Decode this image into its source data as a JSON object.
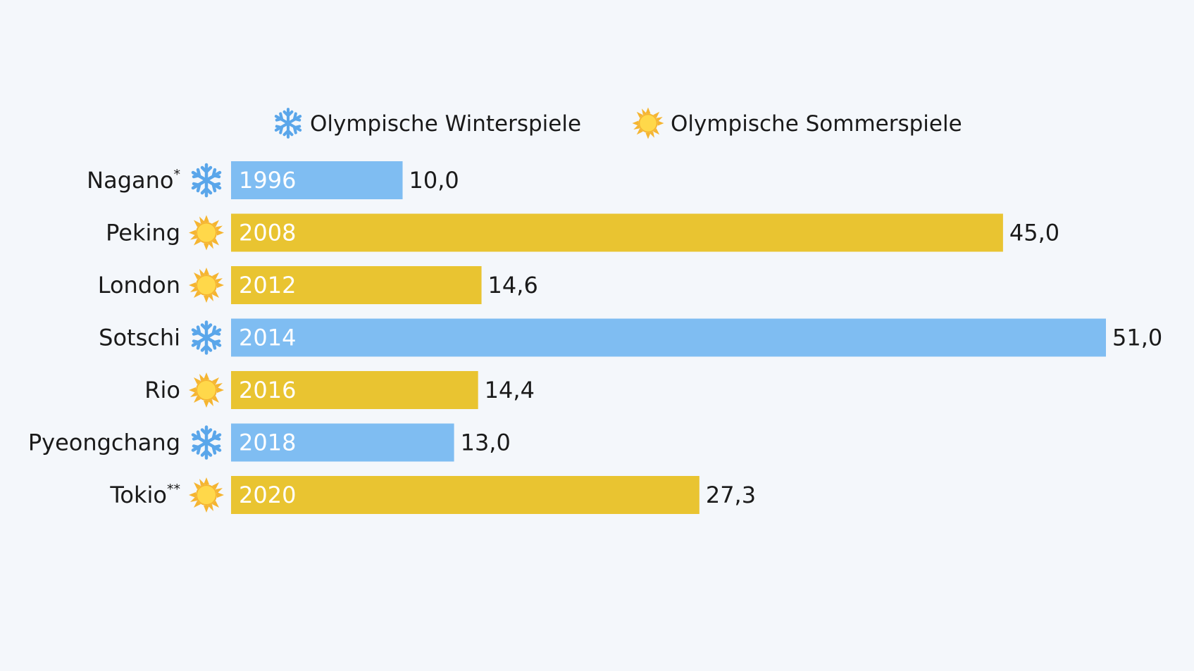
{
  "chart_data": {
    "type": "bar",
    "orientation": "horizontal",
    "categories": [
      "Nagano*",
      "Peking",
      "London",
      "Sotschi",
      "Rio",
      "Pyeongchang",
      "Tokio**"
    ],
    "years": [
      "1996",
      "2008",
      "2012",
      "2014",
      "2016",
      "2018",
      "2020"
    ],
    "values": [
      10.0,
      45.0,
      14.6,
      51.0,
      14.4,
      13.0,
      27.3
    ],
    "value_labels": [
      "10,0",
      "45,0",
      "14,6",
      "51,0",
      "14,4",
      "13,0",
      "27,3"
    ],
    "season": [
      "winter",
      "summer",
      "summer",
      "winter",
      "summer",
      "winter",
      "summer"
    ],
    "legend": {
      "placement": "top-center",
      "items": [
        {
          "key": "winter",
          "label": "Olympische Winterspiele",
          "icon": "snowflake-icon",
          "color": "#7fbdf2"
        },
        {
          "key": "summer",
          "label": "Olympische Sommerspiele",
          "icon": "sun-icon",
          "color": "#e9c431"
        }
      ]
    },
    "xlim": [
      0,
      51
    ],
    "grid": false,
    "colors": {
      "winter": "#7fbdf2",
      "summer": "#e9c431",
      "snowflake": "#5aa6ea",
      "sun_core": "#ffd84a",
      "sun_rays": "#f5b531"
    }
  }
}
